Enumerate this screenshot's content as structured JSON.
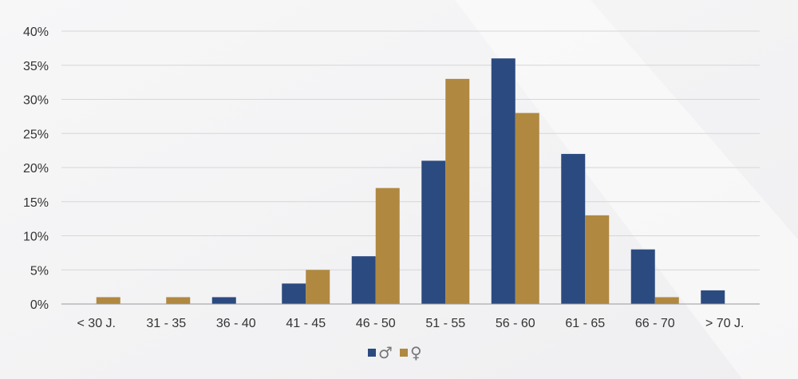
{
  "chart_data": {
    "type": "bar",
    "categories": [
      "< 30 J.",
      "31 - 35",
      "36 - 40",
      "41 - 45",
      "46 - 50",
      "51 - 55",
      "56 - 60",
      "61 - 65",
      "66 - 70",
      "> 70 J."
    ],
    "series": [
      {
        "name": "♂",
        "color": "#2b4a80",
        "values": [
          0,
          0,
          1,
          3,
          7,
          21,
          36,
          22,
          8,
          2
        ]
      },
      {
        "name": "♀",
        "color": "#b08840",
        "values": [
          1,
          1,
          0,
          5,
          17,
          33,
          28,
          13,
          1,
          0
        ]
      }
    ],
    "y_ticks": [
      "0%",
      "5%",
      "10%",
      "15%",
      "20%",
      "25%",
      "30%",
      "35%",
      "40%"
    ],
    "ylim": [
      0,
      40
    ],
    "unit": "%",
    "grid": true,
    "legend": "bottom-center"
  }
}
